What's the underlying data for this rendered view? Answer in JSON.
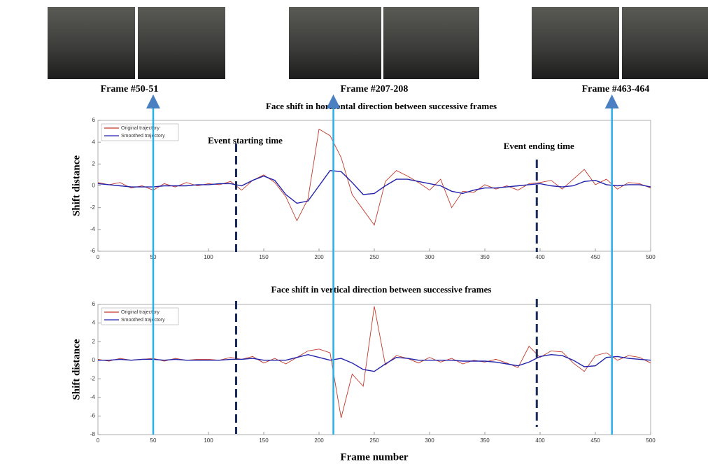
{
  "chart_data": [
    {
      "type": "line",
      "title": "Face shift in horizontal direction between successive frames",
      "ylabel": "Shift distance",
      "x": [
        0,
        10,
        20,
        30,
        40,
        50,
        60,
        70,
        80,
        90,
        100,
        110,
        120,
        130,
        140,
        150,
        160,
        170,
        180,
        190,
        200,
        210,
        220,
        230,
        240,
        250,
        260,
        270,
        280,
        290,
        300,
        310,
        320,
        330,
        340,
        350,
        360,
        370,
        380,
        390,
        400,
        410,
        420,
        430,
        440,
        450,
        460,
        470,
        480,
        490,
        500
      ],
      "xlim": [
        0,
        500
      ],
      "xticks": [
        0,
        50,
        100,
        150,
        200,
        250,
        300,
        350,
        400,
        450,
        500
      ],
      "ylim": [
        -6,
        6
      ],
      "yticks": [
        -6,
        -4,
        -2,
        0,
        2,
        4,
        6
      ],
      "legend": "upper left",
      "series": [
        {
          "name": "Original trajectory",
          "color": "#c0392b",
          "values": [
            0.3,
            0.1,
            0.3,
            -0.2,
            0,
            -0.4,
            0.2,
            -0.1,
            0.3,
            0,
            0.2,
            0.1,
            0.4,
            -0.4,
            0.5,
            1.0,
            0.3,
            -1.0,
            -3.2,
            -1.2,
            5.2,
            4.6,
            2.6,
            -0.8,
            -2.2,
            -3.6,
            0.4,
            1.4,
            0.9,
            0.3,
            -0.4,
            0.6,
            -2.0,
            -0.5,
            -0.6,
            0.1,
            -0.3,
            0,
            -0.4,
            0.2,
            0.3,
            0.5,
            -0.3,
            0.6,
            1.5,
            0.1,
            0.6,
            -0.3,
            0.3,
            0.2,
            -0.2
          ]
        },
        {
          "name": "Smoothed trajectory",
          "color": "#2222aa",
          "values": [
            0.2,
            0.1,
            0,
            -0.1,
            -0.1,
            -0.1,
            0,
            0,
            0,
            0.1,
            0.1,
            0.2,
            0.2,
            0,
            0.5,
            0.9,
            0.5,
            -0.8,
            -1.6,
            -1.4,
            0,
            1.4,
            1.3,
            0.3,
            -0.8,
            -0.7,
            0,
            0.6,
            0.6,
            0.4,
            0.2,
            0,
            -0.5,
            -0.7,
            -0.4,
            -0.2,
            -0.2,
            -0.1,
            0,
            0.1,
            0.2,
            0,
            -0.1,
            0,
            0.4,
            0.5,
            0.1,
            0,
            0.1,
            0.1,
            -0.1
          ]
        }
      ]
    },
    {
      "type": "line",
      "title": "Face shift in vertical direction between successive frames",
      "ylabel": "Shift distance",
      "xlabel": "Frame number",
      "x": [
        0,
        10,
        20,
        30,
        40,
        50,
        60,
        70,
        80,
        90,
        100,
        110,
        120,
        130,
        140,
        150,
        160,
        170,
        180,
        190,
        200,
        210,
        220,
        230,
        240,
        250,
        260,
        270,
        280,
        290,
        300,
        310,
        320,
        330,
        340,
        350,
        360,
        370,
        380,
        390,
        400,
        410,
        420,
        430,
        440,
        450,
        460,
        470,
        480,
        490,
        500
      ],
      "xlim": [
        0,
        500
      ],
      "xticks": [
        0,
        50,
        100,
        150,
        200,
        250,
        300,
        350,
        400,
        450,
        500
      ],
      "ylim": [
        -8,
        6
      ],
      "yticks": [
        -8,
        -6,
        -4,
        -2,
        0,
        2,
        4,
        6
      ],
      "legend": "upper left",
      "series": [
        {
          "name": "Original trajectory",
          "color": "#c0392b",
          "values": [
            0.1,
            -0.1,
            0.2,
            0,
            0.1,
            0.2,
            -0.1,
            0.2,
            0,
            0.1,
            0.1,
            0,
            0.3,
            0.1,
            0.4,
            -0.3,
            0.2,
            -0.4,
            0.3,
            1.0,
            1.2,
            0.8,
            -6.2,
            -1.5,
            -2.8,
            5.8,
            -0.5,
            0.5,
            0.2,
            -0.3,
            0.3,
            -0.2,
            0.2,
            -0.4,
            0,
            -0.2,
            0.1,
            -0.3,
            -0.8,
            1.5,
            0.3,
            1.0,
            0.9,
            -0.3,
            -1.2,
            0.5,
            0.8,
            0,
            0.5,
            0.3,
            -0.3
          ]
        },
        {
          "name": "Smoothed trajectory",
          "color": "#2222aa",
          "values": [
            0,
            0,
            0.1,
            0,
            0.1,
            0.1,
            0,
            0.1,
            0,
            0,
            0,
            0,
            0.1,
            0.1,
            0.2,
            0,
            0,
            0,
            0.3,
            0.6,
            0.3,
            0,
            0.2,
            -0.3,
            -1.0,
            -1.2,
            -0.4,
            0.3,
            0.2,
            0,
            0,
            0,
            0,
            -0.1,
            -0.1,
            -0.1,
            -0.2,
            -0.4,
            -0.6,
            -0.2,
            0.4,
            0.6,
            0.5,
            0,
            -0.7,
            -0.6,
            0.3,
            0.4,
            0.2,
            0.1,
            0
          ]
        }
      ]
    }
  ],
  "events": [
    {
      "label": "Event starting time",
      "x": 125
    },
    {
      "label": "Event ending time",
      "x": 397
    }
  ],
  "frames": [
    {
      "label": "Frame #50-51",
      "x": 50
    },
    {
      "label": "Frame #207-208",
      "x": 213
    },
    {
      "label": "Frame #463-464",
      "x": 465
    }
  ]
}
